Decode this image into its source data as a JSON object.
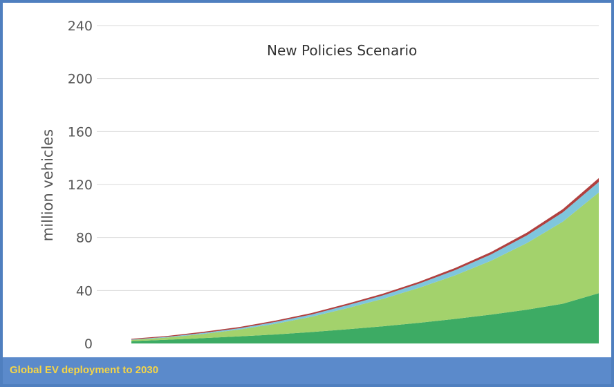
{
  "caption": "Global EV deployment to 2030",
  "colors": {
    "frame": "#4f7fbf",
    "caption_bar": "#5b8acb",
    "caption_text": "#f5d547"
  },
  "chart_data": {
    "type": "area",
    "stacked": true,
    "title": "New Policies Scenario",
    "xlabel": "",
    "ylabel": "million vehicles",
    "ylim": [
      0,
      240
    ],
    "yticks": [
      0,
      40,
      80,
      120,
      160,
      200,
      240
    ],
    "grid": true,
    "x": [
      0,
      1,
      2,
      3,
      4,
      5,
      6,
      7,
      8,
      9,
      10,
      11,
      12,
      13
    ],
    "series": [
      {
        "color": "#3dab64",
        "values": [
          1.8,
          2.8,
          4,
          5.3,
          6.8,
          8.6,
          10.7,
          13,
          15.6,
          18.5,
          21.8,
          25.5,
          30,
          38
        ]
      },
      {
        "color": "#a3d26c",
        "values": [
          0.8,
          1.7,
          3.2,
          5.2,
          8,
          11.5,
          15.9,
          20.7,
          26.4,
          32.9,
          40.6,
          50.3,
          62,
          76
        ]
      },
      {
        "color": "#7fc6dd",
        "values": [
          0.3,
          0.5,
          0.8,
          1,
          1.4,
          1.7,
          2.2,
          2.6,
          3.2,
          3.9,
          4.8,
          5.8,
          7,
          8
        ]
      },
      {
        "color": "#b0403f",
        "values": [
          0.6,
          0.7,
          0.8,
          0.9,
          1,
          1.1,
          1.2,
          1.3,
          1.4,
          1.6,
          1.8,
          2.1,
          2.4,
          2.8
        ]
      }
    ]
  }
}
